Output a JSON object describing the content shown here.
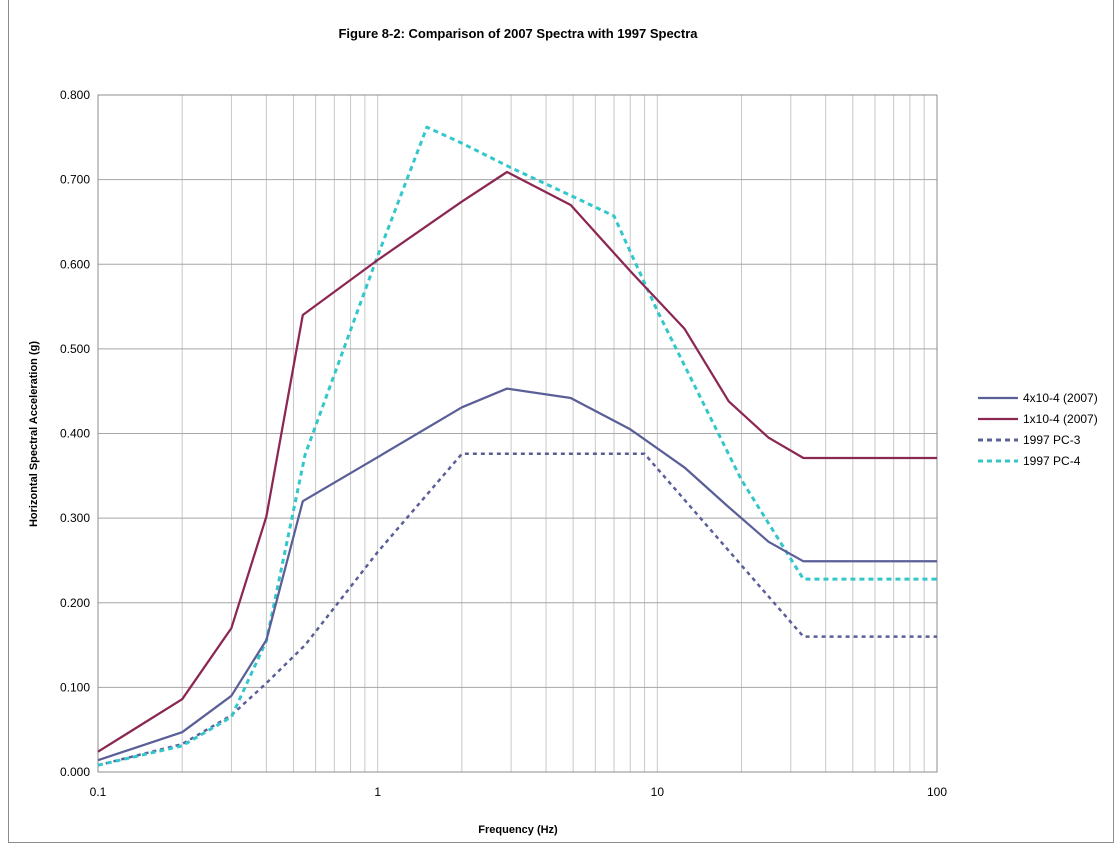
{
  "chart_data": {
    "type": "line",
    "title": "Figure 8-2: Comparison of 2007 Spectra with 1997 Spectra",
    "xlabel": "Frequency (Hz)",
    "ylabel": "Horizontal Spectral Acceleration (g)",
    "x_scale": "log",
    "xlim": [
      0.1,
      100
    ],
    "ylim": [
      0,
      0.8
    ],
    "x_ticks": [
      0.1,
      1,
      10,
      100
    ],
    "x_tick_labels": [
      "0.1",
      "1",
      "10",
      "100"
    ],
    "y_ticks": [
      0,
      0.1,
      0.2,
      0.3,
      0.4,
      0.5,
      0.6,
      0.7,
      0.8
    ],
    "y_tick_labels": [
      "0.000",
      "0.100",
      "0.200",
      "0.300",
      "0.400",
      "0.500",
      "0.600",
      "0.700",
      "0.800"
    ],
    "grid": true,
    "legend_position": "right",
    "series": [
      {
        "name": "4x10-4 (2007)",
        "color": "#5b5f97",
        "style": "solid",
        "points": [
          [
            0.1,
            0.014
          ],
          [
            0.2,
            0.047
          ],
          [
            0.3,
            0.09
          ],
          [
            0.4,
            0.156
          ],
          [
            0.54,
            0.32
          ],
          [
            1,
            0.372
          ],
          [
            2,
            0.431
          ],
          [
            2.9,
            0.453
          ],
          [
            4.9,
            0.442
          ],
          [
            8,
            0.405
          ],
          [
            12.5,
            0.36
          ],
          [
            18,
            0.313
          ],
          [
            25,
            0.272
          ],
          [
            33.3,
            0.249
          ],
          [
            100,
            0.249
          ]
        ]
      },
      {
        "name": "1x10-4 (2007)",
        "color": "#8b2752",
        "style": "solid",
        "points": [
          [
            0.1,
            0.024
          ],
          [
            0.2,
            0.086
          ],
          [
            0.3,
            0.17
          ],
          [
            0.4,
            0.302
          ],
          [
            0.54,
            0.54
          ],
          [
            1,
            0.605
          ],
          [
            2,
            0.674
          ],
          [
            2.9,
            0.709
          ],
          [
            4.9,
            0.67
          ],
          [
            8,
            0.592
          ],
          [
            12.5,
            0.524
          ],
          [
            18,
            0.438
          ],
          [
            25,
            0.395
          ],
          [
            33.3,
            0.371
          ],
          [
            100,
            0.371
          ]
        ]
      },
      {
        "name": "1997 PC-3",
        "color": "#5b5f97",
        "style": "dashed",
        "points": [
          [
            0.1,
            0.008
          ],
          [
            0.2,
            0.033
          ],
          [
            0.3,
            0.067
          ],
          [
            0.4,
            0.105
          ],
          [
            0.55,
            0.15
          ],
          [
            1,
            0.26
          ],
          [
            2,
            0.376
          ],
          [
            9,
            0.376
          ],
          [
            33.3,
            0.16
          ],
          [
            100,
            0.16
          ]
        ]
      },
      {
        "name": "1997 PC-4",
        "color": "#33c7cc",
        "style": "dashed",
        "points": [
          [
            0.1,
            0.008
          ],
          [
            0.2,
            0.031
          ],
          [
            0.3,
            0.065
          ],
          [
            0.4,
            0.155
          ],
          [
            0.55,
            0.375
          ],
          [
            1,
            0.61
          ],
          [
            1.5,
            0.762
          ],
          [
            2,
            0.743
          ],
          [
            3,
            0.714
          ],
          [
            5,
            0.68
          ],
          [
            7,
            0.657
          ],
          [
            10,
            0.545
          ],
          [
            20,
            0.345
          ],
          [
            33.3,
            0.228
          ],
          [
            100,
            0.228
          ]
        ]
      }
    ]
  }
}
